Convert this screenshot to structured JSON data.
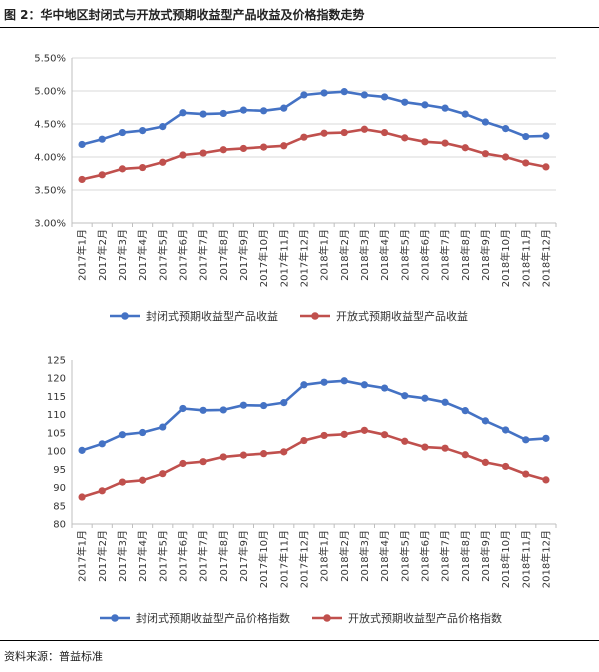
{
  "figure_title": "图 2：华中地区封闭式与开放式预期收益型产品收益及价格指数走势",
  "source_text": "资料来源：普益标准",
  "colors": {
    "closed": "#4472C4",
    "open": "#C0504D",
    "grid": "#d9d9d9",
    "axis": "#bfbfbf"
  },
  "chart_data": [
    {
      "type": "line",
      "categories": [
        "2017年1月",
        "2017年2月",
        "2017年3月",
        "2017年4月",
        "2017年5月",
        "2017年6月",
        "2017年7月",
        "2017年8月",
        "2017年9月",
        "2017年10月",
        "2017年11月",
        "2017年12月",
        "2018年1月",
        "2018年2月",
        "2018年3月",
        "2018年4月",
        "2018年5月",
        "2018年6月",
        "2018年7月",
        "2018年8月",
        "2018年9月",
        "2018年10月",
        "2018年11月",
        "2018年12月"
      ],
      "ylim": [
        3.0,
        5.5
      ],
      "yticks": [
        3.0,
        3.5,
        4.0,
        4.5,
        5.0,
        5.5
      ],
      "ytick_labels": [
        "3.00%",
        "3.50%",
        "4.00%",
        "4.50%",
        "5.00%",
        "5.50%"
      ],
      "grid": true,
      "legend_position": "bottom",
      "series": [
        {
          "name": "封闭式预期收益型产品收益",
          "color": "#4472C4",
          "values": [
            4.19,
            4.27,
            4.37,
            4.4,
            4.46,
            4.67,
            4.65,
            4.66,
            4.71,
            4.7,
            4.74,
            4.94,
            4.97,
            4.99,
            4.94,
            4.91,
            4.83,
            4.79,
            4.74,
            4.65,
            4.53,
            4.43,
            4.31,
            4.32
          ]
        },
        {
          "name": "开放式预期收益型产品收益",
          "color": "#C0504D",
          "values": [
            3.66,
            3.73,
            3.82,
            3.84,
            3.92,
            4.03,
            4.06,
            4.11,
            4.13,
            4.15,
            4.17,
            4.3,
            4.36,
            4.37,
            4.42,
            4.37,
            4.29,
            4.23,
            4.21,
            4.14,
            4.05,
            4.0,
            3.91,
            3.85
          ]
        }
      ]
    },
    {
      "type": "line",
      "categories": [
        "2017年1月",
        "2017年2月",
        "2017年3月",
        "2017年4月",
        "2017年5月",
        "2017年6月",
        "2017年7月",
        "2017年8月",
        "2017年9月",
        "2017年10月",
        "2017年11月",
        "2017年12月",
        "2018年1月",
        "2018年2月",
        "2018年3月",
        "2018年4月",
        "2018年5月",
        "2018年6月",
        "2018年7月",
        "2018年8月",
        "2018年9月",
        "2018年10月",
        "2018年11月",
        "2018年12月"
      ],
      "ylim": [
        80,
        125
      ],
      "yticks": [
        80,
        85,
        90,
        95,
        100,
        105,
        110,
        115,
        120,
        125
      ],
      "ytick_labels": [
        "80",
        "85",
        "90",
        "95",
        "100",
        "105",
        "110",
        "115",
        "120",
        "125"
      ],
      "grid": false,
      "legend_position": "bottom",
      "series": [
        {
          "name": "封闭式预期收益型产品价格指数",
          "color": "#4472C4",
          "values": [
            100.2,
            102.0,
            104.5,
            105.1,
            106.6,
            111.7,
            111.2,
            111.3,
            112.6,
            112.5,
            113.3,
            118.2,
            118.9,
            119.3,
            118.2,
            117.3,
            115.2,
            114.5,
            113.4,
            111.1,
            108.3,
            105.8,
            103.1,
            103.5
          ]
        },
        {
          "name": "开放式预期收益型产品价格指数",
          "color": "#C0504D",
          "values": [
            87.4,
            89.1,
            91.5,
            92.0,
            93.8,
            96.6,
            97.1,
            98.4,
            98.9,
            99.3,
            99.8,
            102.9,
            104.3,
            104.6,
            105.7,
            104.5,
            102.7,
            101.1,
            100.8,
            99.0,
            96.9,
            95.8,
            93.7,
            92.1
          ]
        }
      ]
    }
  ]
}
